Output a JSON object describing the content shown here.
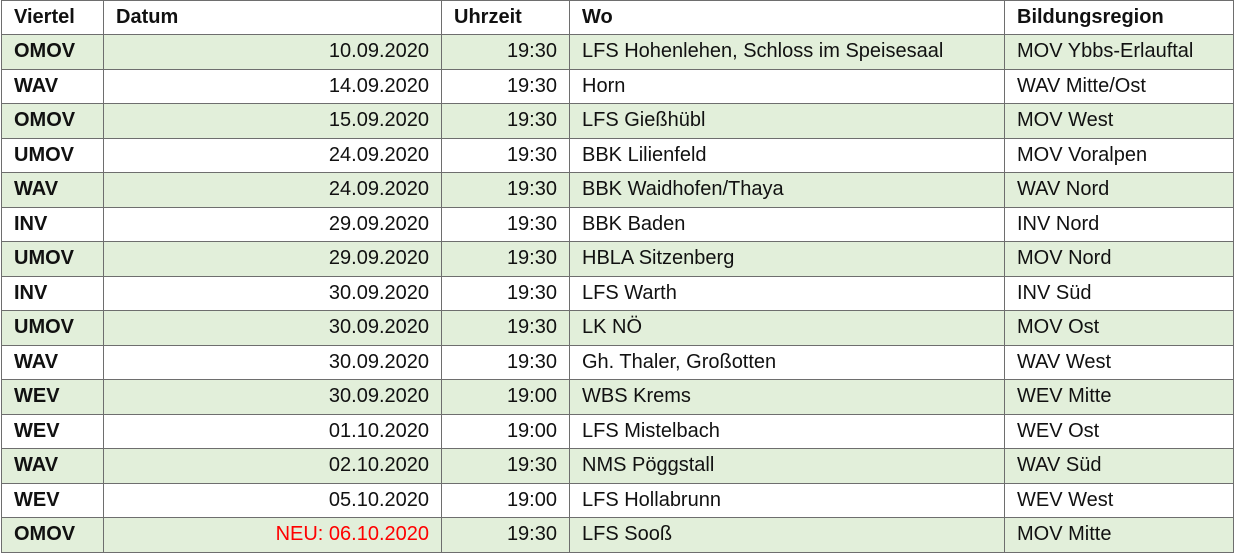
{
  "headers": [
    "Viertel",
    "Datum",
    "Uhrzeit",
    "Wo",
    "Bildungsregion"
  ],
  "rows": [
    {
      "viertel": "OMOV",
      "datum": "10.09.2020",
      "uhrzeit": "19:30",
      "wo": "LFS Hohenlehen, Schloss im Speisesaal",
      "region": "MOV Ybbs-Erlauftal"
    },
    {
      "viertel": "WAV",
      "datum": "14.09.2020",
      "uhrzeit": "19:30",
      "wo": "Horn",
      "region": "WAV Mitte/Ost"
    },
    {
      "viertel": "OMOV",
      "datum": "15.09.2020",
      "uhrzeit": "19:30",
      "wo": "LFS Gießhübl",
      "region": "MOV West"
    },
    {
      "viertel": "UMOV",
      "datum": "24.09.2020",
      "uhrzeit": "19:30",
      "wo": "BBK Lilienfeld",
      "region": "MOV Voralpen"
    },
    {
      "viertel": "WAV",
      "datum": "24.09.2020",
      "uhrzeit": "19:30",
      "wo": "BBK Waidhofen/Thaya",
      "region": "WAV Nord"
    },
    {
      "viertel": "INV",
      "datum": "29.09.2020",
      "uhrzeit": "19:30",
      "wo": "BBK Baden",
      "region": "INV Nord"
    },
    {
      "viertel": "UMOV",
      "datum": "29.09.2020",
      "uhrzeit": "19:30",
      "wo": "HBLA Sitzenberg",
      "region": "MOV Nord"
    },
    {
      "viertel": "INV",
      "datum": "30.09.2020",
      "uhrzeit": "19:30",
      "wo": "LFS Warth",
      "region": "INV Süd"
    },
    {
      "viertel": "UMOV",
      "datum": "30.09.2020",
      "uhrzeit": "19:30",
      "wo": "LK NÖ",
      "region": "MOV Ost"
    },
    {
      "viertel": "WAV",
      "datum": "30.09.2020",
      "uhrzeit": "19:30",
      "wo": "Gh. Thaler, Großotten",
      "region": "WAV West"
    },
    {
      "viertel": "WEV",
      "datum": "30.09.2020",
      "uhrzeit": "19:00",
      "wo": "WBS Krems",
      "region": "WEV Mitte"
    },
    {
      "viertel": "WEV",
      "datum": "01.10.2020",
      "uhrzeit": "19:00",
      "wo": "LFS Mistelbach",
      "region": "WEV Ost"
    },
    {
      "viertel": "WAV",
      "datum": "02.10.2020",
      "uhrzeit": "19:30",
      "wo": "NMS Pöggstall",
      "region": "WAV Süd"
    },
    {
      "viertel": "WEV",
      "datum": "05.10.2020",
      "uhrzeit": "19:00",
      "wo": "LFS Hollabrunn",
      "region": "WEV West"
    },
    {
      "viertel": "OMOV",
      "datum": "NEU: 06.10.2020",
      "uhrzeit": "19:30",
      "wo": "LFS Sooß",
      "region": "MOV Mitte",
      "highlight": true
    }
  ],
  "colors": {
    "band": "#e2efda",
    "highlight_text": "#ff0000",
    "border": "#6e6e6e"
  }
}
